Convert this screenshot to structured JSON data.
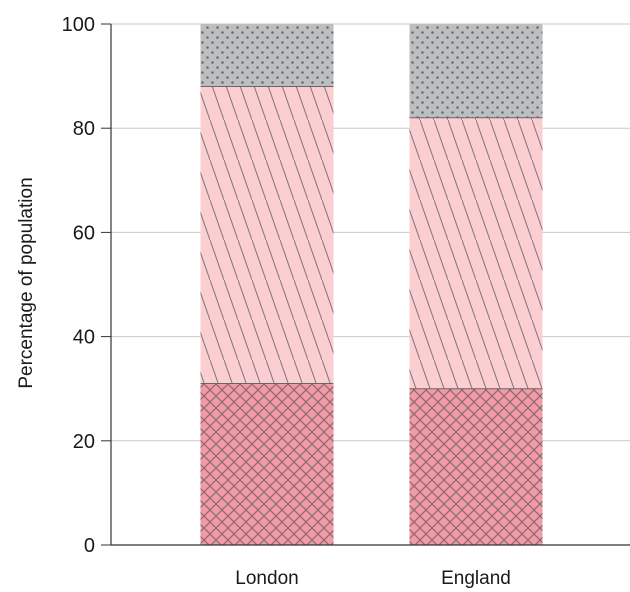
{
  "chart_data": {
    "type": "bar",
    "stacked": true,
    "categories": [
      "London",
      "England"
    ],
    "series": [
      {
        "values": [
          31,
          30
        ],
        "color": "#f29aa6",
        "pattern": "crosshatch"
      },
      {
        "values": [
          57,
          52
        ],
        "color": "#fbcfd2",
        "pattern": "diagonal-lines"
      },
      {
        "values": [
          12,
          18
        ],
        "color": "#bcbec0",
        "pattern": "dots"
      }
    ],
    "title": "",
    "xlabel": "",
    "ylabel": "Percentage of population",
    "ylim": [
      0,
      100
    ],
    "yticks": [
      "0",
      "20",
      "40",
      "60",
      "80",
      "100"
    ],
    "grid": true
  }
}
